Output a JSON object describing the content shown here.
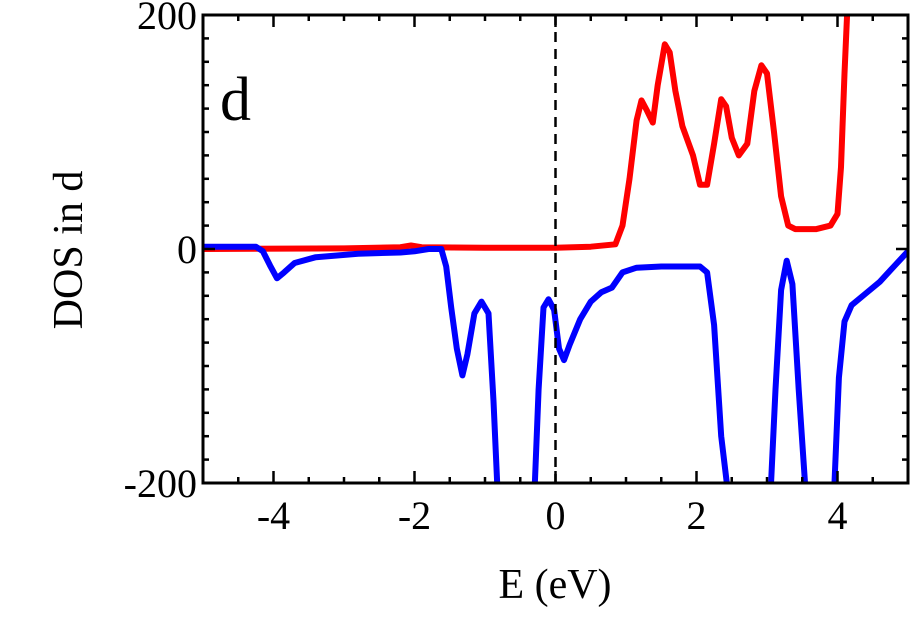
{
  "chart_data": {
    "type": "line",
    "title": "",
    "panel_label": "d",
    "xlabel": "E (eV)",
    "ylabel": "DOS in d",
    "xlim": [
      -5,
      5
    ],
    "ylim": [
      -200,
      200
    ],
    "x_ticks": [
      -4,
      -2,
      0,
      2,
      4
    ],
    "y_ticks": [
      -200,
      0,
      200
    ],
    "x_tick_labels": [
      "-4",
      "-2",
      "0",
      "2",
      "4"
    ],
    "y_tick_labels": [
      "-200",
      "0",
      "200"
    ],
    "grid": false,
    "fermi_level_line": 0,
    "colors": {
      "series_up": "#ff0000",
      "series_down": "#0000ff"
    },
    "series": [
      {
        "color": "#ff0000",
        "points": [
          [
            -5,
            0
          ],
          [
            -3,
            0.5
          ],
          [
            -2.2,
            1.5
          ],
          [
            -2.05,
            3
          ],
          [
            -1.9,
            1.5
          ],
          [
            -1.0,
            1
          ],
          [
            0,
            1
          ],
          [
            0.5,
            2
          ],
          [
            0.85,
            4
          ],
          [
            0.95,
            20
          ],
          [
            1.05,
            60
          ],
          [
            1.15,
            110
          ],
          [
            1.22,
            127
          ],
          [
            1.3,
            118
          ],
          [
            1.38,
            108
          ],
          [
            1.45,
            140
          ],
          [
            1.55,
            175
          ],
          [
            1.62,
            168
          ],
          [
            1.7,
            135
          ],
          [
            1.8,
            105
          ],
          [
            1.95,
            80
          ],
          [
            2.05,
            55
          ],
          [
            2.15,
            55
          ],
          [
            2.25,
            90
          ],
          [
            2.35,
            128
          ],
          [
            2.42,
            122
          ],
          [
            2.5,
            95
          ],
          [
            2.6,
            80
          ],
          [
            2.72,
            90
          ],
          [
            2.82,
            135
          ],
          [
            2.92,
            157
          ],
          [
            3.0,
            150
          ],
          [
            3.1,
            100
          ],
          [
            3.2,
            45
          ],
          [
            3.3,
            20
          ],
          [
            3.4,
            17
          ],
          [
            3.7,
            17
          ],
          [
            3.9,
            20
          ],
          [
            4.0,
            30
          ],
          [
            4.05,
            70
          ],
          [
            4.1,
            150
          ],
          [
            4.15,
            220
          ]
        ]
      },
      {
        "color": "#0000ff",
        "points": [
          [
            -5,
            2
          ],
          [
            -4.25,
            2
          ],
          [
            -4.15,
            -2
          ],
          [
            -4.05,
            -14
          ],
          [
            -3.95,
            -25
          ],
          [
            -3.85,
            -20
          ],
          [
            -3.7,
            -12
          ],
          [
            -3.4,
            -7
          ],
          [
            -2.8,
            -4
          ],
          [
            -2.2,
            -3
          ],
          [
            -2.0,
            -2
          ],
          [
            -1.8,
            0
          ],
          [
            -1.62,
            0
          ],
          [
            -1.55,
            -15
          ],
          [
            -1.48,
            -50
          ],
          [
            -1.4,
            -85
          ],
          [
            -1.32,
            -108
          ],
          [
            -1.25,
            -90
          ],
          [
            -1.15,
            -55
          ],
          [
            -1.05,
            -45
          ],
          [
            -0.95,
            -55
          ],
          [
            -0.88,
            -130
          ],
          [
            -0.82,
            -210
          ],
          [
            -0.3,
            -210
          ],
          [
            -0.24,
            -120
          ],
          [
            -0.17,
            -50
          ],
          [
            -0.1,
            -43
          ],
          [
            -0.02,
            -52
          ],
          [
            0.05,
            -85
          ],
          [
            0.12,
            -95
          ],
          [
            0.2,
            -82
          ],
          [
            0.35,
            -60
          ],
          [
            0.5,
            -45
          ],
          [
            0.65,
            -37
          ],
          [
            0.8,
            -33
          ],
          [
            0.95,
            -20
          ],
          [
            1.15,
            -16
          ],
          [
            1.5,
            -15
          ],
          [
            2.05,
            -15
          ],
          [
            2.15,
            -20
          ],
          [
            2.25,
            -65
          ],
          [
            2.35,
            -160
          ],
          [
            2.45,
            -210
          ],
          [
            3.05,
            -210
          ],
          [
            3.12,
            -120
          ],
          [
            3.2,
            -35
          ],
          [
            3.28,
            -10
          ],
          [
            3.36,
            -30
          ],
          [
            3.45,
            -120
          ],
          [
            3.55,
            -210
          ],
          [
            3.95,
            -210
          ],
          [
            4.02,
            -110
          ],
          [
            4.1,
            -62
          ],
          [
            4.2,
            -48
          ],
          [
            4.4,
            -38
          ],
          [
            4.6,
            -28
          ],
          [
            4.8,
            -15
          ],
          [
            5.0,
            -2
          ]
        ]
      }
    ]
  }
}
